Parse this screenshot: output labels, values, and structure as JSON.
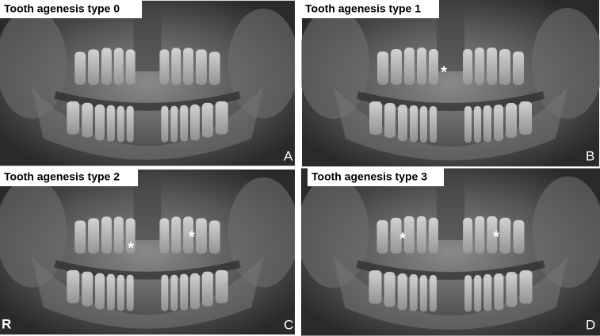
{
  "panels": [
    {
      "title": "Tooth agenesis type 0",
      "letter": "A"
    },
    {
      "title": "Tooth agenesis type 1",
      "letter": "B",
      "markers": [
        "*"
      ]
    },
    {
      "title": "Tooth agenesis type 2",
      "letter": "C",
      "markers": [
        "*",
        "*"
      ],
      "side": "R"
    },
    {
      "title": "Tooth agenesis type 3",
      "letter": "D",
      "markers": [
        "*",
        "*"
      ]
    }
  ]
}
